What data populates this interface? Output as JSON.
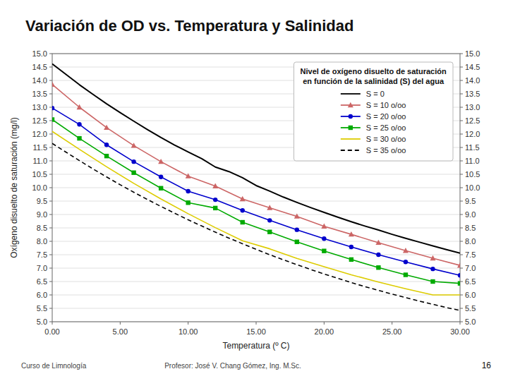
{
  "chart_data": {
    "type": "line",
    "title": "Variación de OD vs. Temperatura y Salinidad",
    "xlabel": "Temperatura (º C)",
    "ylabel": "Oxígeno disuelto de saturación (mg/l)",
    "legend_title": "Nivel de oxígeno disuelto de saturación\nen función de la salinidad (S) del agua",
    "annotations": [
      "Curso de Limnología",
      "Profesor: José V. Chang Gómez, Ing. M.Sc.",
      "16"
    ],
    "xlim": [
      0.0,
      30.0
    ],
    "xticks": [
      {
        "value": 0.0,
        "label": "0.00"
      },
      {
        "value": 5.0,
        "label": "5.00"
      },
      {
        "value": 10.0,
        "label": "10.00"
      },
      {
        "value": 15.0,
        "label": "15.00"
      },
      {
        "value": 20.0,
        "label": "20.00"
      },
      {
        "value": 25.0,
        "label": "25.00"
      },
      {
        "value": 30.0,
        "label": "30.00"
      }
    ],
    "ylim": [
      5.0,
      15.0
    ],
    "yticks": [
      {
        "value": 5.0,
        "label": "5.0"
      },
      5.5,
      {
        "value": 6.0,
        "label": "6.0"
      },
      6.5,
      {
        "value": 7.0,
        "label": "7.0"
      },
      7.5,
      {
        "value": 8.0,
        "label": "8.0"
      },
      8.5,
      {
        "value": 9.0,
        "label": "9.0"
      },
      9.5,
      {
        "value": 10.0,
        "label": "10.0"
      },
      10.5,
      {
        "value": 11.0,
        "label": "11.0"
      },
      11.5,
      {
        "value": 12.0,
        "label": "12.0"
      },
      12.5,
      {
        "value": 13.0,
        "label": "13.0"
      },
      13.5,
      {
        "value": 14.0,
        "label": "14.0"
      },
      14.5,
      {
        "value": 15.0,
        "label": "15.0"
      }
    ],
    "y2lim": [
      5.0,
      15.0
    ],
    "y2ticks": [
      {
        "value": 5.0,
        "label": "5.0"
      },
      5.5,
      {
        "value": 6.0,
        "label": "6.0"
      },
      6.5,
      {
        "value": 7.0,
        "label": "7.0"
      },
      7.5,
      {
        "value": 8.0,
        "label": "8.0"
      },
      8.5,
      {
        "value": 9.0,
        "label": "9.0"
      },
      9.5,
      {
        "value": 10.0,
        "label": "10.0"
      },
      10.5,
      {
        "value": 11.0,
        "label": "11.0"
      },
      11.5,
      {
        "value": 12.0,
        "label": "12.0"
      },
      12.5,
      {
        "value": 13.0,
        "label": "13.0"
      },
      13.5,
      {
        "value": 14.0,
        "label": "14.0"
      },
      14.5,
      {
        "value": 15.0,
        "label": "15.0"
      }
    ],
    "grid": true,
    "legend": "upper right",
    "series": [
      {
        "name": "S = 0",
        "color": "#000000",
        "line_style": "solid",
        "x": [
          0,
          1,
          2,
          3,
          4,
          5,
          6,
          7,
          8,
          9,
          10,
          11,
          12,
          13,
          14,
          15,
          16,
          17,
          18,
          19,
          20,
          21,
          22,
          23,
          24,
          25,
          26,
          27,
          28,
          29,
          30
        ],
        "values": [
          14.62,
          14.23,
          13.84,
          13.48,
          13.13,
          12.8,
          12.48,
          12.17,
          11.87,
          11.59,
          11.33,
          11.08,
          10.77,
          10.6,
          10.37,
          10.08,
          9.87,
          9.65,
          9.45,
          9.26,
          9.08,
          8.9,
          8.73,
          8.57,
          8.42,
          8.26,
          8.11,
          7.97,
          7.83,
          7.69,
          7.56
        ]
      },
      {
        "name": "S = 10 o/oo",
        "color": "#cc6666",
        "line_style": "solid",
        "marker": "triangle",
        "x": [
          0,
          2,
          4,
          6,
          8,
          10,
          12,
          14,
          16,
          18,
          20,
          22,
          24,
          26,
          28,
          30
        ],
        "values": [
          13.85,
          13.0,
          12.24,
          11.57,
          10.97,
          10.43,
          10.06,
          9.58,
          9.25,
          8.93,
          8.56,
          8.26,
          7.95,
          7.65,
          7.37,
          7.1
        ]
      },
      {
        "name": "S = 20 o/oo",
        "color": "#0000cc",
        "line_style": "solid",
        "marker": "circle",
        "x": [
          0,
          2,
          4,
          6,
          8,
          10,
          12,
          14,
          16,
          18,
          20,
          22,
          24,
          26,
          28,
          30
        ],
        "values": [
          12.97,
          12.36,
          11.6,
          10.97,
          10.4,
          9.87,
          9.55,
          9.15,
          8.78,
          8.43,
          8.1,
          7.79,
          7.5,
          7.23,
          6.97,
          6.73
        ]
      },
      {
        "name": "S = 25 o/oo",
        "color": "#00aa00",
        "line_style": "solid",
        "marker": "square",
        "x": [
          0,
          2,
          4,
          6,
          8,
          10,
          12,
          14,
          16,
          18,
          20,
          22,
          24,
          26,
          28,
          30
        ],
        "values": [
          12.54,
          11.84,
          11.18,
          10.56,
          9.98,
          9.44,
          9.24,
          8.71,
          8.35,
          7.98,
          7.64,
          7.32,
          7.02,
          6.75,
          6.5,
          6.43
        ]
      },
      {
        "name": "S = 30 o/oo",
        "color": "#ddcc00",
        "line_style": "solid",
        "x": [
          0,
          2,
          4,
          6,
          8,
          10,
          12,
          14,
          16,
          18,
          20,
          22,
          24,
          26,
          28,
          30
        ],
        "values": [
          12.1,
          11.43,
          10.78,
          10.16,
          9.58,
          9.03,
          8.51,
          8.02,
          7.72,
          7.36,
          7.05,
          6.75,
          6.48,
          6.23,
          6.0,
          6.0
        ]
      },
      {
        "name": "S = 35 o/oo",
        "color": "#000000",
        "line_style": "dashed",
        "x": [
          0,
          1,
          2,
          3,
          4,
          5,
          6,
          7,
          8,
          9,
          10,
          11,
          12,
          13,
          14,
          15,
          16,
          17,
          18,
          19,
          20,
          21,
          22,
          23,
          24,
          25,
          26,
          27,
          28,
          29,
          30
        ],
        "values": [
          11.65,
          11.33,
          11.01,
          10.7,
          10.4,
          10.11,
          9.83,
          9.56,
          9.3,
          9.05,
          8.8,
          8.57,
          8.34,
          8.12,
          7.91,
          7.7,
          7.5,
          7.31,
          7.13,
          6.95,
          6.78,
          6.62,
          6.46,
          6.31,
          6.17,
          6.03,
          5.9,
          5.77,
          5.65,
          5.53,
          5.42
        ]
      }
    ]
  }
}
